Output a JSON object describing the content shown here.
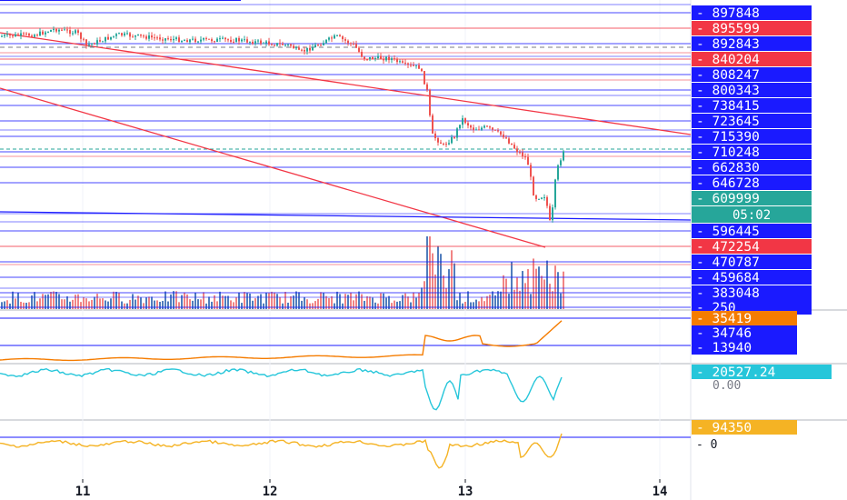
{
  "chart_data": {
    "type": "line",
    "title": "",
    "x_ticks": [
      "11",
      "12",
      "13",
      "14"
    ],
    "main": {
      "price_lines": [
        {
          "label": "897848",
          "color": "#1a1aff"
        },
        {
          "label": "895599",
          "color": "#f23645"
        },
        {
          "label": "892843",
          "color": "#1a1aff"
        },
        {
          "label": "840204",
          "color": "#f23645"
        },
        {
          "label": "808247",
          "color": "#1a1aff"
        },
        {
          "label": "800343",
          "color": "#1a1aff"
        },
        {
          "label": "738415",
          "color": "#1a1aff"
        },
        {
          "label": "723645",
          "color": "#1a1aff"
        },
        {
          "label": "715390",
          "color": "#1a1aff"
        },
        {
          "label": "710248",
          "color": "#1a1aff"
        },
        {
          "label": "662830",
          "color": "#1a1aff"
        },
        {
          "label": "646728",
          "color": "#1a1aff"
        },
        {
          "label": "609999",
          "color": "#26a69a"
        },
        {
          "label": "596445",
          "color": "#1a1aff"
        },
        {
          "label": "472254",
          "color": "#f23645"
        },
        {
          "label": "470787",
          "color": "#1a1aff"
        },
        {
          "label": "459684",
          "color": "#1a1aff"
        },
        {
          "label": "383048",
          "color": "#1a1aff"
        },
        {
          "label": "250",
          "color": "#1a1aff"
        }
      ],
      "countdown": "05:02"
    },
    "pane2": {
      "labels": [
        "35419",
        "34746",
        "13940"
      ],
      "line_color": "#f57c00"
    },
    "pane3": {
      "labels": [
        "20527.24",
        "0.00"
      ],
      "line_color": "#26c6da"
    },
    "pane4": {
      "labels": [
        "94350",
        "0"
      ],
      "line_color": "#f5b324"
    }
  }
}
